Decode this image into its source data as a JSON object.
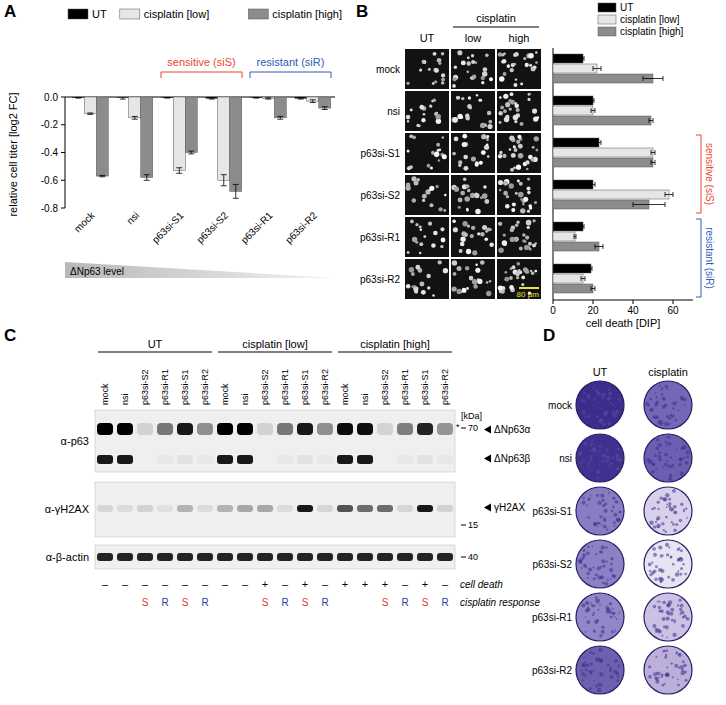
{
  "panels": [
    "A",
    "B",
    "C",
    "D"
  ],
  "chart_data": [
    {
      "type": "bar",
      "y_label": "relative cell titer [log2 FC]",
      "categories": [
        "mock",
        "nsi",
        "p63si-S1",
        "p63si-S2",
        "p63si-R1",
        "p63si-R2"
      ],
      "series": [
        {
          "name": "UT",
          "color": "#000000",
          "values": [
            -0.005,
            -0.005,
            -0.005,
            -0.01,
            -0.005,
            -0.01
          ],
          "errors": [
            0.003,
            0.01,
            0.003,
            0.005,
            0.003,
            0.005
          ]
        },
        {
          "name": "cisplatin [low]",
          "color": "#e6e6e6",
          "values": [
            -0.12,
            -0.15,
            -0.53,
            -0.6,
            -0.01,
            -0.03
          ],
          "errors": [
            0.005,
            0.01,
            0.02,
            0.04,
            0.005,
            0.01
          ]
        },
        {
          "name": "cisplatin [high]",
          "color": "#8c8c8c",
          "values": [
            -0.57,
            -0.58,
            -0.4,
            -0.68,
            -0.15,
            -0.08
          ],
          "errors": [
            0.005,
            0.02,
            0.01,
            0.05,
            0.01,
            0.01
          ]
        }
      ],
      "ylim": [
        -0.8,
        0
      ],
      "yticks": [
        {
          "value": 0,
          "label": "0.0"
        },
        -0.2,
        -0.4,
        -0.6,
        -0.8
      ],
      "legend": "top",
      "annotations": [
        {
          "text": "sensitive (siS)",
          "color": "#e8472f",
          "span": [
            "p63si-S1",
            "p63si-S2"
          ]
        },
        {
          "text": "resistant (siR)",
          "color": "#2e5cb8",
          "span": [
            "p63si-R1",
            "p63si-R2"
          ]
        },
        {
          "text": "ΔNp63 level"
        }
      ]
    },
    {
      "type": "bar",
      "orientation": "horizontal",
      "x_label": "cell death [DIP]",
      "categories": [
        "mock",
        "nsi",
        "p63si-S1",
        "p63si-S2",
        "p63si-R1",
        "p63si-R2"
      ],
      "series": [
        {
          "name": "UT",
          "color": "#000000",
          "values": [
            15,
            20,
            23,
            20,
            15,
            19
          ],
          "errors": [
            0.5,
            0.5,
            1,
            1,
            0.5,
            0.5
          ]
        },
        {
          "name": "cisplatin [low]",
          "color": "#e6e6e6",
          "values": [
            22,
            20,
            50,
            58,
            11,
            15
          ],
          "errors": [
            2,
            1,
            1,
            2,
            0.5,
            1
          ]
        },
        {
          "name": "cisplatin [high]",
          "color": "#8c8c8c",
          "values": [
            50,
            49,
            50,
            48,
            23,
            20
          ],
          "errors": [
            5,
            1,
            1,
            8,
            2,
            1
          ]
        }
      ],
      "xlim": [
        0,
        70
      ],
      "xticks": [
        0,
        20,
        40,
        60
      ],
      "tick_labels": "x",
      "legend": "top right",
      "annotations": [
        {
          "text": "sensitive (siS)",
          "color": "#e8472f",
          "span": [
            "p63si-S1",
            "p63si-S2"
          ]
        },
        {
          "text": "resistant (siR)",
          "color": "#2e5cb8",
          "span": [
            "p63si-R1",
            "p63si-R2"
          ]
        }
      ]
    }
  ],
  "micrographs": {
    "group": "cisplatin",
    "columns": [
      "UT",
      "low",
      "high"
    ],
    "scale_bar": "80 µm"
  },
  "blot": {
    "groups": [
      "UT",
      "cisplatin [low]",
      "cisplatin [high]"
    ],
    "lanes": [
      "mock",
      "nsi",
      "p63si-S2",
      "p63si-R1",
      "p63si-S1",
      "p63si-R2"
    ],
    "rows": [
      "α-p63",
      "α-γH2AX",
      "α-β-actin"
    ],
    "kda_unit": "[kDa]",
    "markers": [
      70,
      15,
      40
    ],
    "asterisk": "*",
    "bands": [
      "ΔNp63α",
      "ΔNp63β",
      "γH2AX"
    ],
    "annotation_rows": [
      "cell death",
      "cisplatin response"
    ],
    "cell_death": [
      "–",
      "–",
      "–",
      "–",
      "–",
      "–",
      "–",
      "–",
      "+",
      "–",
      "+",
      "–",
      "+",
      "+",
      "+",
      "–",
      "+",
      "–"
    ],
    "cisplatin_response": [
      null,
      null,
      "S",
      "R",
      "S",
      "R",
      null,
      null,
      "S",
      "R",
      "S",
      "R",
      null,
      null,
      "S",
      "R",
      "S",
      "R"
    ],
    "response_colors": {
      "S": "#e0352b",
      "R": "#1f3f9a"
    }
  },
  "plates": {
    "columns": [
      "UT",
      "cisplatin"
    ],
    "rows": [
      "mock",
      "nsi",
      "p63si-S1",
      "p63si-S2",
      "p63si-R1",
      "p63si-R2"
    ]
  }
}
